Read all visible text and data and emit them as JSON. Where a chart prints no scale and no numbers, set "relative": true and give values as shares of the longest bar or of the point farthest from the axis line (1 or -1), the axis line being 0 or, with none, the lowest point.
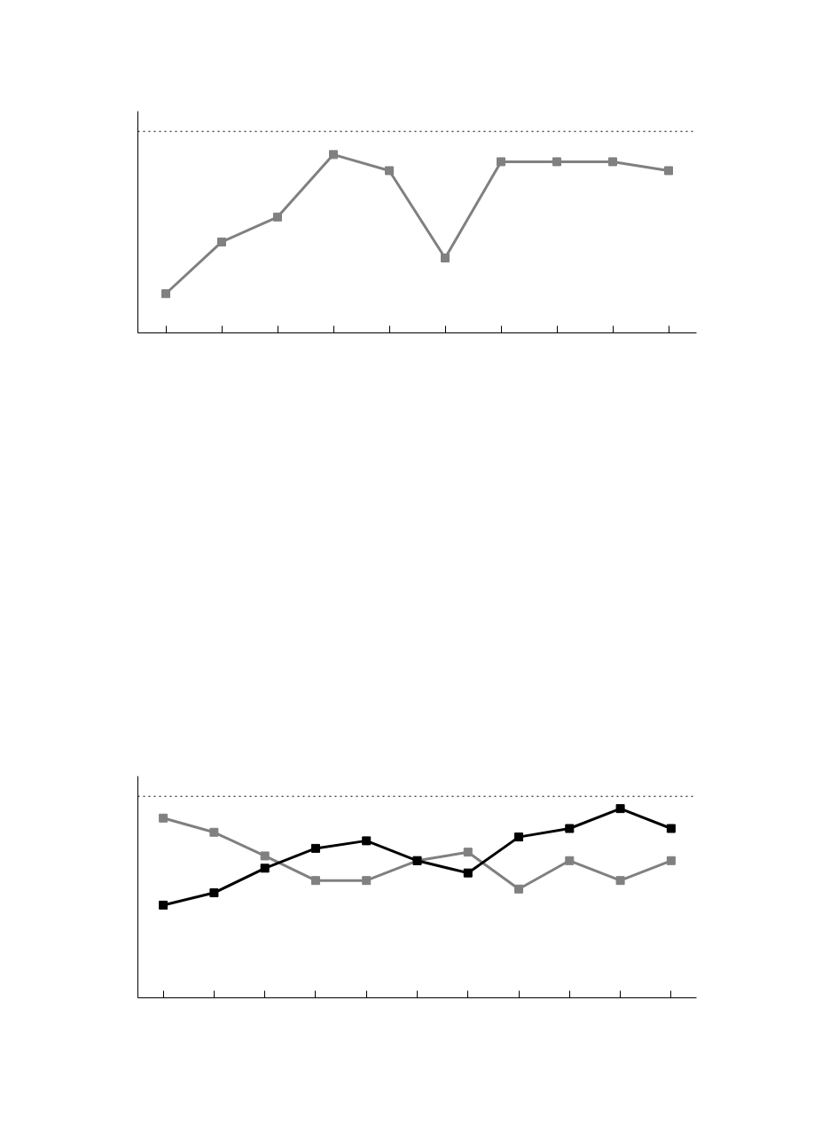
{
  "chart_data": [
    {
      "type": "line",
      "relative": true,
      "categories": [
        null,
        null,
        null,
        null,
        null,
        null,
        null,
        null,
        null,
        null
      ],
      "series": [
        {
          "color": "#808080",
          "values": [
            0.22,
            0.51,
            0.65,
            1,
            0.91,
            0.42,
            0.96,
            0.96,
            0.96,
            0.91
          ]
        }
      ],
      "marker": "square",
      "line_style": "solid",
      "grid": false,
      "ref_lines": [
        {
          "axis": "y",
          "value": 1.13,
          "color": "#000000",
          "line_style": "dotted"
        }
      ]
    },
    {
      "type": "line",
      "relative": true,
      "categories": [
        null,
        null,
        null,
        null,
        null,
        null,
        null,
        null,
        null,
        null,
        null
      ],
      "series": [
        {
          "color": "#808080",
          "values": [
            0.95,
            0.875,
            0.75,
            0.62,
            0.62,
            0.725,
            0.77,
            0.575,
            0.725,
            0.62,
            0.725
          ]
        },
        {
          "color": "#000000",
          "values": [
            0.49,
            0.555,
            0.685,
            0.79,
            0.83,
            0.725,
            0.66,
            0.85,
            0.895,
            1,
            0.895
          ]
        }
      ],
      "marker": "square",
      "line_style": "solid",
      "grid": false,
      "ref_lines": [
        {
          "axis": "y",
          "value": 1.065,
          "color": "#000000",
          "line_style": "dotted"
        }
      ]
    }
  ]
}
